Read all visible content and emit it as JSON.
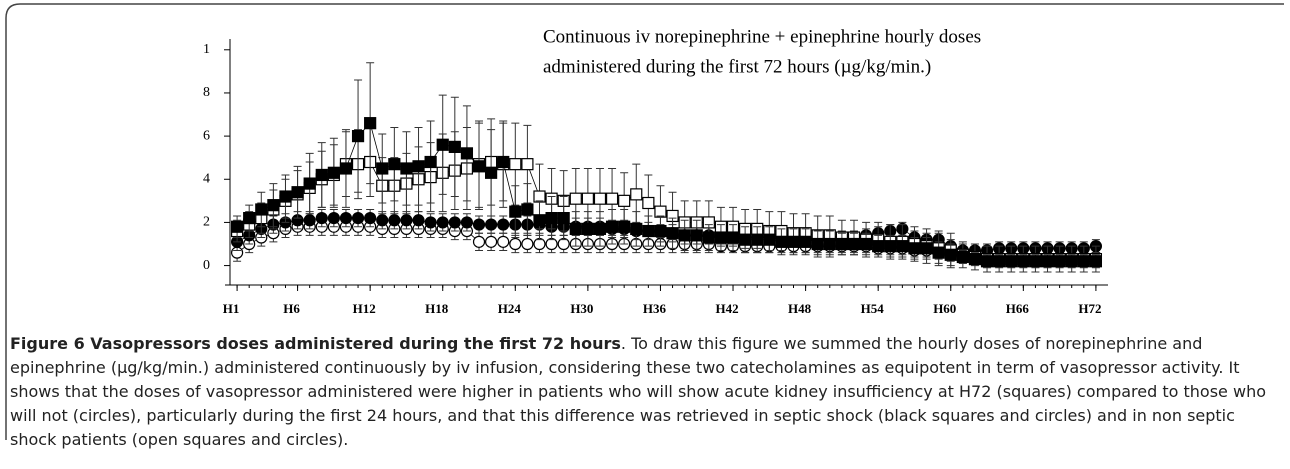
{
  "chart_data": {
    "type": "scatter",
    "annotation": [
      "Continuous iv norepinephrine + epinephrine hourly doses",
      "administered during the first 72 hours  (µg/kg/min.)"
    ],
    "x": [
      1,
      2,
      3,
      4,
      5,
      6,
      7,
      8,
      9,
      10,
      11,
      12,
      13,
      14,
      15,
      16,
      17,
      18,
      19,
      20,
      21,
      22,
      23,
      24,
      25,
      26,
      27,
      28,
      29,
      30,
      31,
      32,
      33,
      34,
      35,
      36,
      37,
      38,
      39,
      40,
      41,
      42,
      43,
      44,
      45,
      46,
      47,
      48,
      49,
      50,
      51,
      52,
      53,
      54,
      55,
      56,
      57,
      58,
      59,
      60,
      61,
      62,
      63,
      64,
      65,
      66,
      67,
      68,
      69,
      70,
      71,
      72
    ],
    "xlim": [
      0,
      73
    ],
    "xticks": [
      {
        "value": 1,
        "label": "H1"
      },
      {
        "value": 6,
        "label": "H6"
      },
      {
        "value": 12,
        "label": "H12"
      },
      {
        "value": 18,
        "label": "H18"
      },
      {
        "value": 24,
        "label": "H24"
      },
      {
        "value": 30,
        "label": "H30"
      },
      {
        "value": 36,
        "label": "H36"
      },
      {
        "value": 42,
        "label": "H42"
      },
      {
        "value": 48,
        "label": "H48"
      },
      {
        "value": 54,
        "label": "H54"
      },
      {
        "value": 60,
        "label": "H60"
      },
      {
        "value": 66,
        "label": "H66"
      },
      {
        "value": 72,
        "label": "H72"
      }
    ],
    "ylim": [
      -0.9,
      10.5
    ],
    "yticks": [
      0,
      2,
      4,
      6,
      8,
      {
        "value": 10,
        "label": "1"
      }
    ],
    "series": [
      {
        "marker": "circle",
        "color": "#ffffff",
        "values": [
          0.6,
          1.0,
          1.3,
          1.5,
          1.7,
          1.8,
          1.8,
          1.8,
          1.8,
          1.8,
          1.8,
          1.8,
          1.7,
          1.7,
          1.7,
          1.7,
          1.7,
          1.7,
          1.6,
          1.6,
          1.1,
          1.1,
          1.1,
          1.0,
          1.0,
          1.0,
          1.0,
          1.0,
          1.0,
          1.0,
          1.0,
          1.0,
          1.0,
          1.0,
          1.0,
          1.0,
          1.0,
          1.0,
          1.0,
          1.0,
          0.9,
          0.9,
          0.9,
          0.9,
          0.9,
          0.9,
          0.9,
          0.9,
          0.9,
          0.9,
          0.9,
          0.9,
          0.9,
          0.8,
          0.8,
          0.8,
          0.7,
          0.7,
          0.6,
          0.5,
          0.4,
          0.4,
          0.4,
          0.4,
          0.4,
          0.4,
          0.4,
          0.4,
          0.4,
          0.4,
          0.4,
          0.4
        ],
        "errors": [
          0.4,
          0.4,
          0.4,
          0.4,
          0.4,
          0.4,
          0.4,
          0.4,
          0.4,
          0.4,
          0.4,
          0.4,
          0.4,
          0.4,
          0.4,
          0.4,
          0.4,
          0.4,
          0.4,
          0.4,
          0.4,
          0.4,
          0.4,
          0.4,
          0.4,
          0.4,
          0.4,
          0.4,
          0.4,
          0.4,
          0.4,
          0.4,
          0.4,
          0.4,
          0.4,
          0.4,
          0.4,
          0.4,
          0.4,
          0.4,
          0.3,
          0.3,
          0.3,
          0.3,
          0.3,
          0.3,
          0.3,
          0.3,
          0.3,
          0.3,
          0.3,
          0.3,
          0.3,
          0.3,
          0.3,
          0.3,
          0.3,
          0.3,
          0.3,
          0.3,
          0.3,
          0.3,
          0.3,
          0.3,
          0.3,
          0.3,
          0.3,
          0.3,
          0.3,
          0.3,
          0.3,
          0.3
        ]
      },
      {
        "marker": "circle",
        "color": "#000000",
        "values": [
          1.1,
          1.4,
          1.7,
          1.9,
          2.0,
          2.1,
          2.1,
          2.2,
          2.2,
          2.2,
          2.2,
          2.2,
          2.1,
          2.1,
          2.1,
          2.1,
          2.0,
          2.0,
          2.0,
          2.0,
          1.9,
          1.9,
          1.9,
          1.9,
          1.9,
          1.9,
          1.8,
          1.8,
          1.8,
          1.8,
          1.8,
          1.7,
          1.7,
          1.6,
          1.6,
          1.5,
          1.5,
          1.4,
          1.4,
          1.4,
          1.3,
          1.3,
          1.3,
          1.3,
          1.3,
          1.2,
          1.2,
          1.2,
          1.2,
          1.2,
          1.3,
          1.3,
          1.4,
          1.5,
          1.6,
          1.7,
          1.3,
          1.2,
          1.2,
          0.9,
          0.7,
          0.7,
          0.7,
          0.8,
          0.8,
          0.8,
          0.8,
          0.8,
          0.8,
          0.8,
          0.8,
          0.9
        ],
        "errors": [
          0.4,
          0.4,
          0.4,
          0.4,
          0.4,
          0.4,
          0.4,
          0.4,
          0.4,
          0.4,
          0.4,
          0.4,
          0.4,
          0.4,
          0.4,
          0.4,
          0.4,
          0.4,
          0.4,
          0.4,
          0.4,
          0.4,
          0.4,
          0.4,
          0.4,
          0.4,
          0.4,
          0.4,
          0.4,
          0.4,
          0.4,
          0.4,
          0.4,
          0.4,
          0.4,
          0.4,
          0.4,
          0.4,
          0.4,
          0.4,
          0.3,
          0.3,
          0.3,
          0.3,
          0.3,
          0.3,
          0.3,
          0.3,
          0.3,
          0.3,
          0.3,
          0.3,
          0.3,
          0.3,
          0.3,
          0.3,
          0.3,
          0.3,
          0.3,
          0.3,
          0.3,
          0.3,
          0.3,
          0.3,
          0.3,
          0.3,
          0.3,
          0.3,
          0.3,
          0.3,
          0.3,
          0.3
        ]
      },
      {
        "marker": "square",
        "color": "#ffffff",
        "values": [
          1.6,
          1.9,
          2.2,
          2.6,
          3.0,
          3.3,
          3.6,
          4.0,
          4.2,
          4.7,
          4.7,
          4.8,
          3.7,
          3.7,
          3.8,
          4.0,
          4.1,
          4.3,
          4.4,
          4.5,
          4.7,
          4.8,
          4.7,
          4.7,
          4.7,
          3.2,
          3.1,
          3.0,
          3.1,
          3.1,
          3.1,
          3.1,
          3.0,
          3.3,
          2.9,
          2.5,
          2.3,
          2.0,
          2.0,
          2.0,
          1.8,
          1.8,
          1.7,
          1.7,
          1.6,
          1.6,
          1.5,
          1.5,
          1.4,
          1.4,
          1.3,
          1.3,
          1.2,
          1.2,
          1.1,
          1.1,
          1.0,
          0.9,
          0.8,
          0.7,
          0.5,
          0.4,
          0.3,
          0.3,
          0.3,
          0.3,
          0.3,
          0.3,
          0.3,
          0.3,
          0.3,
          0.3
        ],
        "errors": [
          0.5,
          0.6,
          0.7,
          0.9,
          1.0,
          1.1,
          1.2,
          1.3,
          1.4,
          1.5,
          1.6,
          1.6,
          1.3,
          1.3,
          1.4,
          1.5,
          1.6,
          1.8,
          1.8,
          1.9,
          2.0,
          2.0,
          2.0,
          1.9,
          1.8,
          1.5,
          1.4,
          1.4,
          1.4,
          1.4,
          1.4,
          1.4,
          1.3,
          1.4,
          1.3,
          1.2,
          1.1,
          1.0,
          1.0,
          1.0,
          0.9,
          0.9,
          0.9,
          0.9,
          0.9,
          0.9,
          0.9,
          0.9,
          0.9,
          0.9,
          0.8,
          0.8,
          0.8,
          0.8,
          0.8,
          0.8,
          0.8,
          0.8,
          0.8,
          0.8,
          0.6,
          0.6,
          0.6,
          0.6,
          0.6,
          0.6,
          0.6,
          0.6,
          0.6,
          0.6,
          0.6,
          0.6
        ]
      },
      {
        "marker": "square",
        "color": "#000000",
        "values": [
          1.8,
          2.2,
          2.6,
          2.8,
          3.2,
          3.4,
          3.8,
          4.2,
          4.3,
          4.5,
          6.0,
          6.6,
          4.5,
          4.7,
          4.5,
          4.6,
          4.8,
          5.6,
          5.5,
          5.2,
          4.6,
          4.3,
          4.8,
          2.5,
          2.6,
          2.1,
          2.2,
          2.2,
          1.7,
          1.7,
          1.7,
          1.8,
          1.8,
          1.7,
          1.6,
          1.6,
          1.5,
          1.4,
          1.4,
          1.3,
          1.3,
          1.3,
          1.2,
          1.2,
          1.2,
          1.1,
          1.1,
          1.1,
          1.0,
          1.0,
          1.0,
          1.0,
          1.0,
          0.9,
          0.9,
          0.9,
          0.8,
          0.8,
          0.6,
          0.5,
          0.4,
          0.3,
          0.2,
          0.2,
          0.2,
          0.2,
          0.2,
          0.2,
          0.2,
          0.2,
          0.2,
          0.2
        ],
        "errors": [
          0.5,
          0.6,
          0.8,
          1.0,
          1.0,
          1.2,
          1.4,
          1.5,
          1.6,
          1.8,
          2.6,
          2.8,
          1.6,
          1.7,
          1.7,
          1.8,
          1.9,
          2.3,
          2.3,
          2.2,
          2.0,
          2.0,
          1.8,
          1.2,
          1.2,
          0.9,
          1.0,
          1.0,
          0.8,
          0.8,
          0.8,
          0.8,
          0.8,
          0.8,
          0.7,
          0.7,
          0.7,
          0.7,
          0.7,
          0.6,
          0.6,
          0.6,
          0.6,
          0.6,
          0.6,
          0.6,
          0.6,
          0.6,
          0.6,
          0.6,
          0.5,
          0.5,
          0.5,
          0.5,
          0.5,
          0.5,
          0.5,
          0.5,
          0.5,
          0.5,
          0.3,
          0.3,
          0.3,
          0.3,
          0.3,
          0.3,
          0.3,
          0.3,
          0.3,
          0.3,
          0.3,
          0.3
        ]
      }
    ]
  },
  "caption": {
    "label": "Figure 6 Vasopressors doses administered during the first 72 hours",
    "text": ". To draw this figure we summed the hourly doses of norepinephrine and epinephrine (µg/kg/min.) administered continuously by iv infusion, considering these two catecholamines as equipotent in term of vasopressor activity. It shows that the doses of vasopressor administered were higher in patients who will show acute kidney insufficiency at H72 (squares) compared to those who will not (circles), particularly during the first 24 hours, and that this difference was retrieved in septic shock (black squares and circles) and in non septic shock patients (open squares and circles)."
  }
}
